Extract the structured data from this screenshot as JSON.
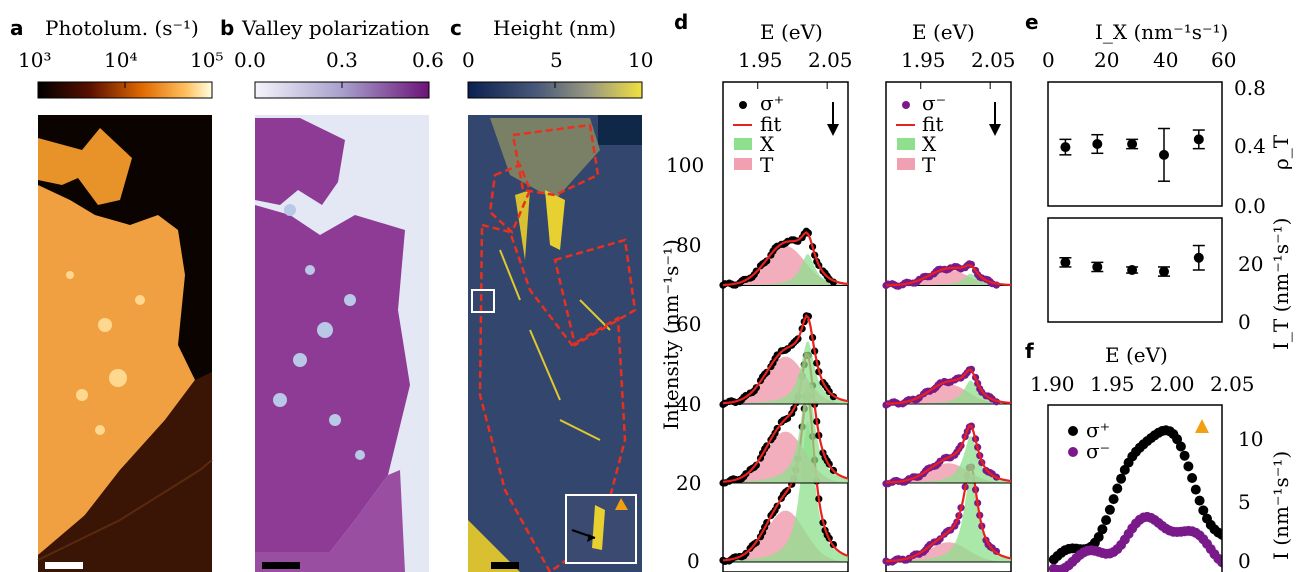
{
  "panels": {
    "a": {
      "letter": "a",
      "title": "Photolum. (s⁻¹)",
      "ticks": [
        "10³",
        "10⁴",
        "10⁵"
      ]
    },
    "b": {
      "letter": "b",
      "title": "Valley polarization",
      "ticks": [
        "0.0",
        "0.3",
        "0.6"
      ]
    },
    "c": {
      "letter": "c",
      "title": "Height (nm)",
      "ticks": [
        "0",
        "5",
        "10"
      ]
    },
    "d": {
      "letter": "d",
      "top_axis_label": "E (eV)",
      "top_ticks": [
        "1.95",
        "2.05"
      ],
      "ylabel": "Intensity (nm⁻¹s⁻¹)",
      "yticks": [
        "0",
        "20",
        "40",
        "60",
        "80",
        "100"
      ],
      "legend_left": [
        "σ⁺",
        "fit",
        "X",
        "T"
      ],
      "legend_right": [
        "σ⁻",
        "fit",
        "X",
        "T"
      ]
    },
    "e": {
      "letter": "e",
      "xlabel": "I_X (nm⁻¹s⁻¹)",
      "xticks": [
        "0",
        "20",
        "40",
        "60"
      ],
      "top_ylabel": "ρ_T",
      "top_yticks": [
        "0.0",
        "0.4",
        "0.8"
      ],
      "bottom_ylabel": "I_T (nm⁻¹s⁻¹)",
      "bottom_yticks": [
        "0",
        "20"
      ]
    },
    "f": {
      "letter": "f",
      "xlabel": "E (eV)",
      "xticks": [
        "1.90",
        "1.95",
        "2.00",
        "2.05"
      ],
      "ylabel": "I (nm⁻¹s⁻¹)",
      "yticks": [
        "0",
        "5",
        "10"
      ],
      "legend": [
        "σ⁺",
        "σ⁻"
      ]
    }
  },
  "colors": {
    "sigma_plus": "#000000",
    "sigma_minus": "#7a1a8a",
    "fit": "#e8201e",
    "X": "#8ee08e",
    "T": "#f0a0b0",
    "marker": "#f0a010"
  },
  "chart_data": [
    {
      "type": "scatter",
      "xlim": [
        0,
        60
      ],
      "ylim": [
        0,
        0.8
      ],
      "x": [
        6,
        17,
        29,
        40,
        52
      ],
      "y": [
        0.38,
        0.4,
        0.4,
        0.33,
        0.43
      ],
      "yerr": [
        0.05,
        0.06,
        0.03,
        0.17,
        0.06
      ]
    },
    {
      "type": "scatter",
      "xlim": [
        0,
        60
      ],
      "ylim": [
        0,
        34
      ],
      "x": [
        6,
        17,
        29,
        40,
        52
      ],
      "y": [
        19.5,
        18.0,
        17.0,
        16.5,
        21.0
      ],
      "yerr": [
        1.5,
        1.5,
        1.0,
        1.5,
        4.0
      ]
    },
    {
      "type": "scatter",
      "xlim": [
        1.9,
        2.05
      ],
      "ylim": [
        0,
        12
      ],
      "series": [
        {
          "name": "σ⁺",
          "center": 1.995,
          "peak": 11,
          "width": 0.03,
          "base": 0.5
        },
        {
          "name": "σ⁻",
          "center": 1.995,
          "peak": 3.5,
          "width": 0.03,
          "base": 0.3
        }
      ]
    }
  ]
}
